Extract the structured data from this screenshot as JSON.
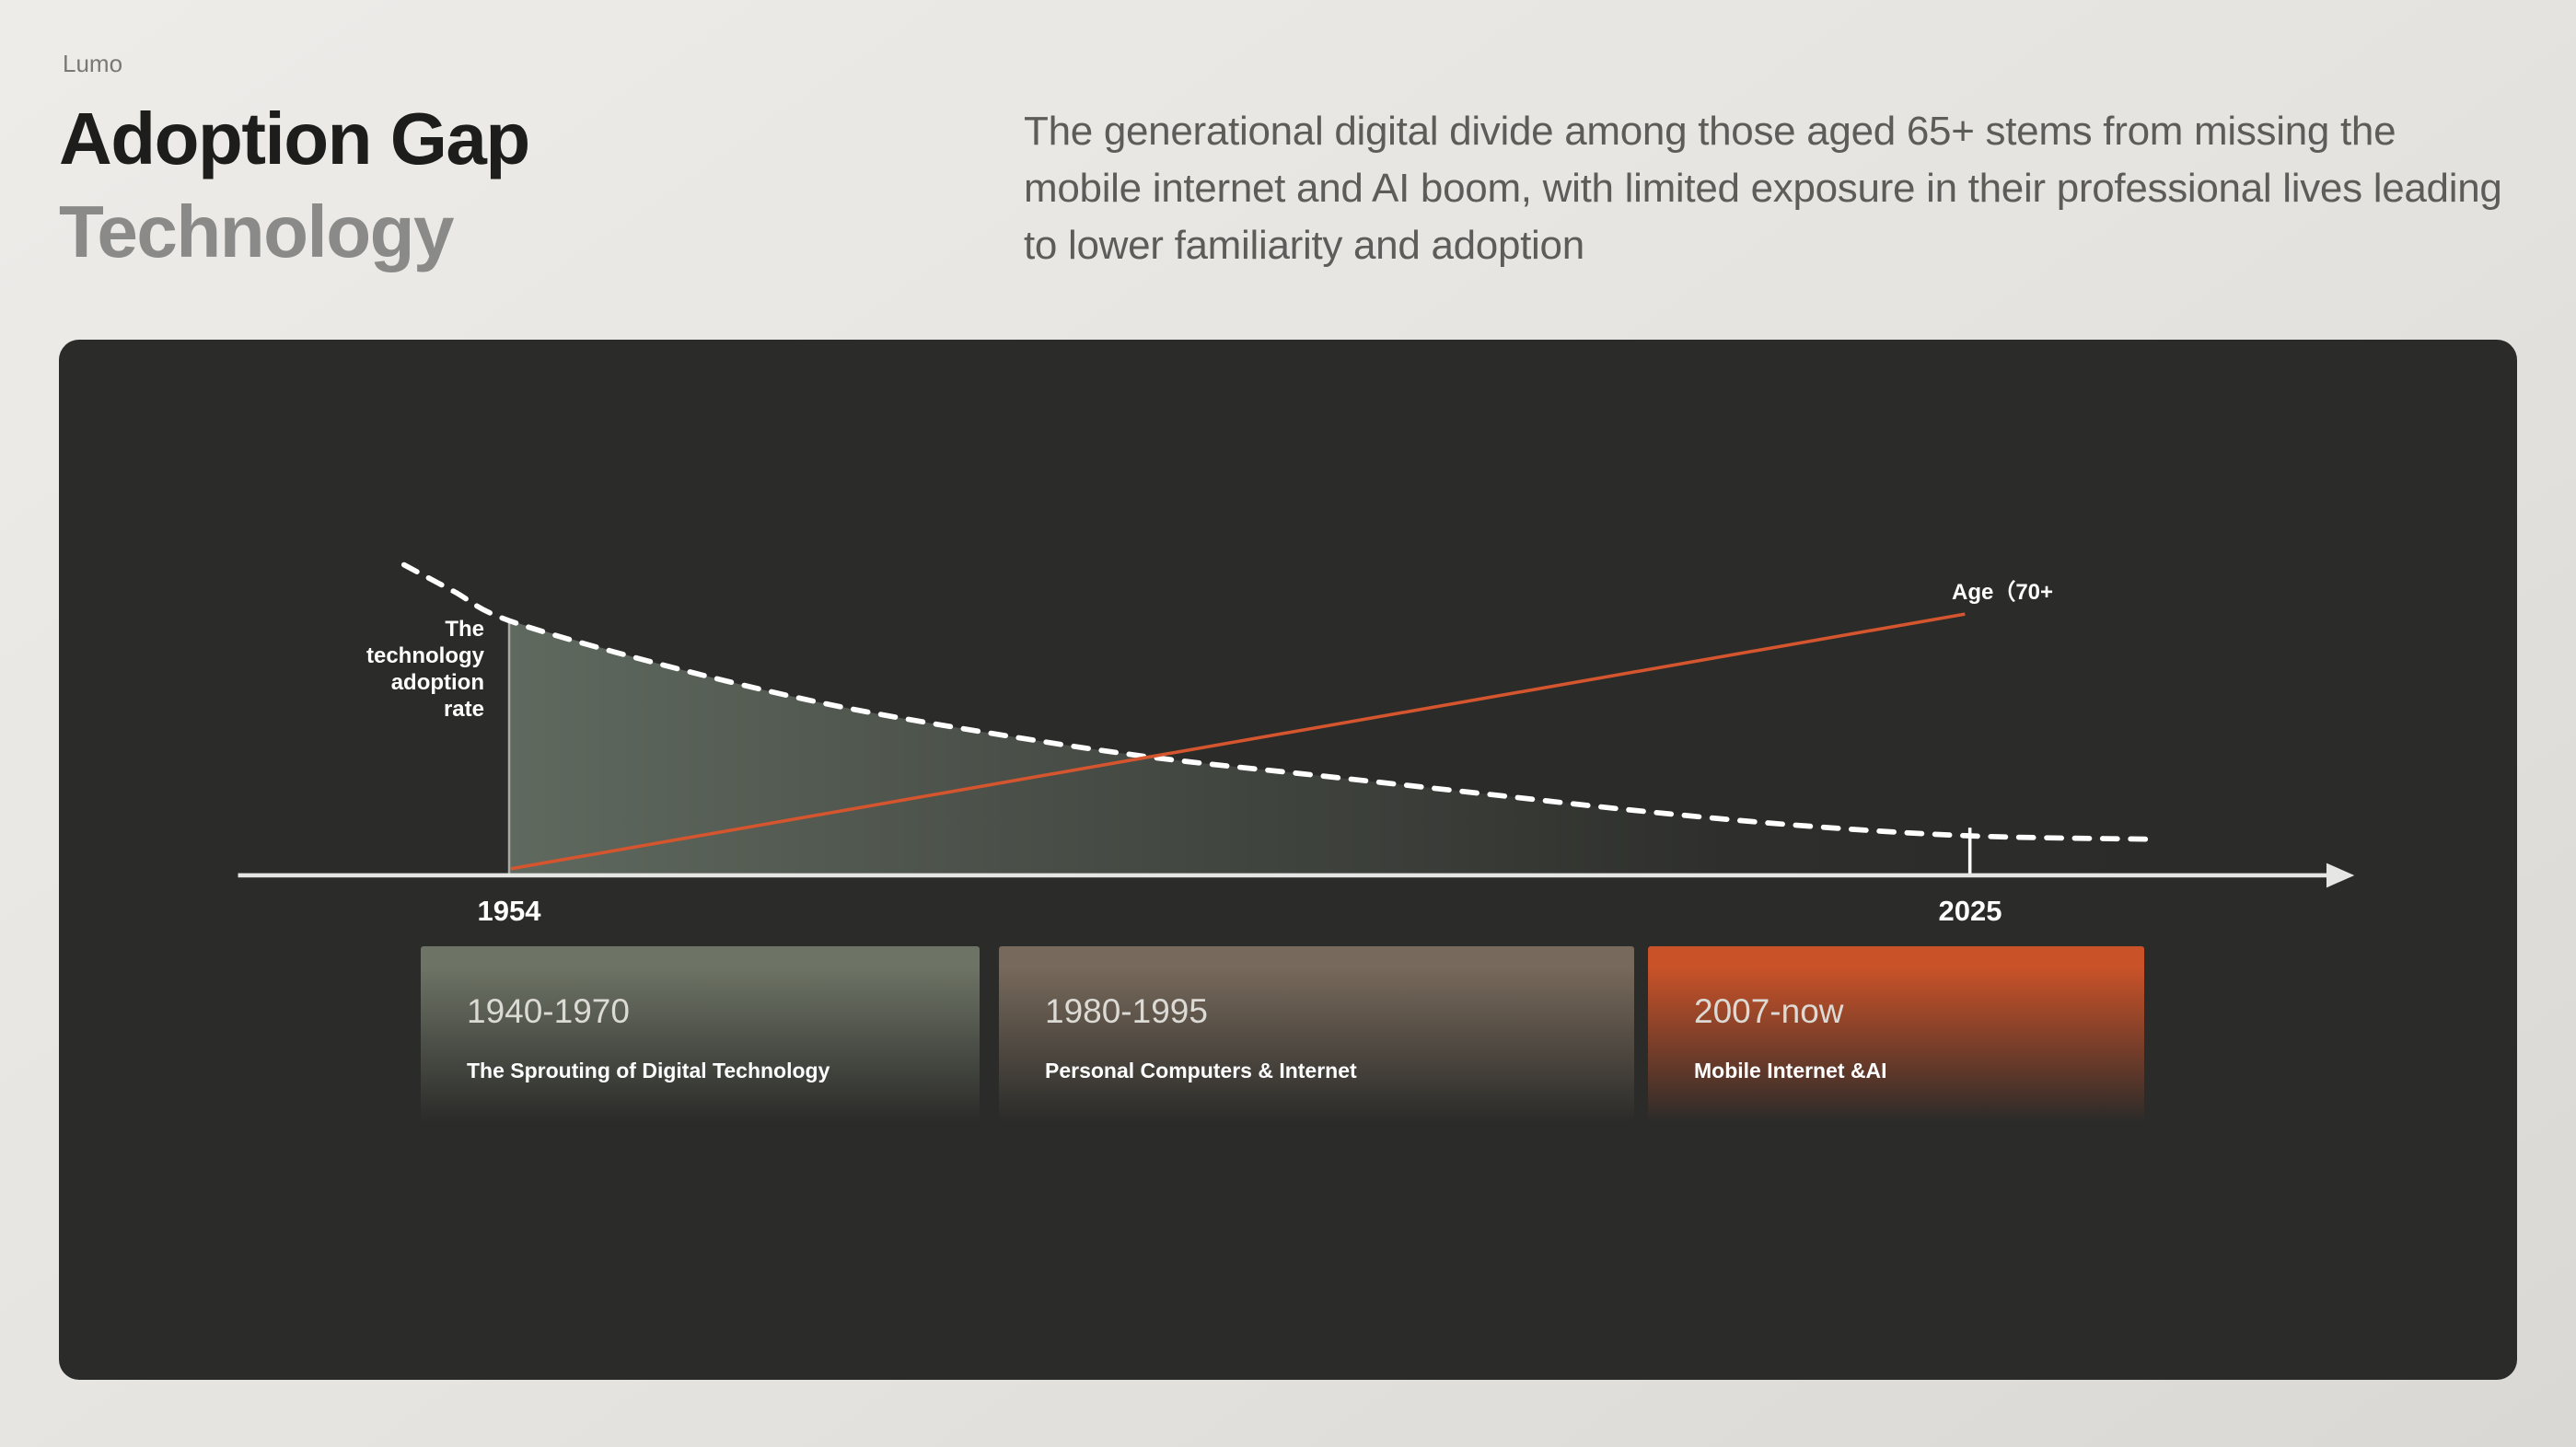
{
  "brand": "Lumo",
  "header": {
    "title_line1": "Adoption Gap",
    "title_line2": "Technology",
    "subtitle": "The generational digital divide among those aged 65+ stems from missing the mobile internet and AI boom, with limited exposure in their professional lives leading to lower familiarity and adoption"
  },
  "chart": {
    "y_axis_label": "The\ntechnology\nadoption\nrate",
    "age_line_label": "Age（70+",
    "x_ticks": [
      "1954",
      "2025"
    ]
  },
  "periods": [
    {
      "range": "1940-1970",
      "label": "The Sprouting of Digital Technology",
      "color_top": "#6d7365"
    },
    {
      "range": "1980-1995",
      "label": "Personal Computers & Internet",
      "color_top": "#77695b"
    },
    {
      "range": "2007-now",
      "label": "Mobile Internet &AI",
      "color_top": "#c95229"
    }
  ],
  "colors": {
    "panel_bg": "#2b2b29",
    "curve": "#ffffff",
    "age_line": "#d4552e",
    "axis": "#e6e6e4",
    "area_fill": "#8a9c8a"
  },
  "chart_data": {
    "type": "line",
    "title": "Technology adoption rate declines while 70+ age share rises, 1954-2025",
    "x_axis": {
      "type": "time",
      "ticks": [
        "1954",
        "2025"
      ]
    },
    "y_axis": {
      "label": "The technology adoption rate",
      "numeric_scale": false
    },
    "legend_position": "none",
    "grid": false,
    "axis_y": 326,
    "coordinate_note": "points are in chart viewBox coordinates (0-1496 x, 0-633 y); y decreases upward; x=274 corresponds to 1954 and x=1163 to 2025",
    "series": [
      {
        "name": "The technology adoption rate",
        "style": "dashed",
        "color": "#ffffff",
        "trend": "decreasing",
        "points": [
          [
            210,
            137
          ],
          [
            240,
            153
          ],
          [
            274,
            171
          ],
          [
            364,
            197
          ],
          [
            464,
            221
          ],
          [
            564,
            239
          ],
          [
            664,
            254
          ],
          [
            764,
            265
          ],
          [
            864,
            276
          ],
          [
            964,
            287
          ],
          [
            1064,
            296
          ],
          [
            1164,
            302
          ],
          [
            1271,
            304
          ]
        ]
      },
      {
        "name": "Age（70+",
        "style": "solid",
        "color": "#d4552e",
        "trend": "increasing",
        "points": [
          [
            275,
            322
          ],
          [
            1160,
            167
          ]
        ]
      }
    ]
  }
}
